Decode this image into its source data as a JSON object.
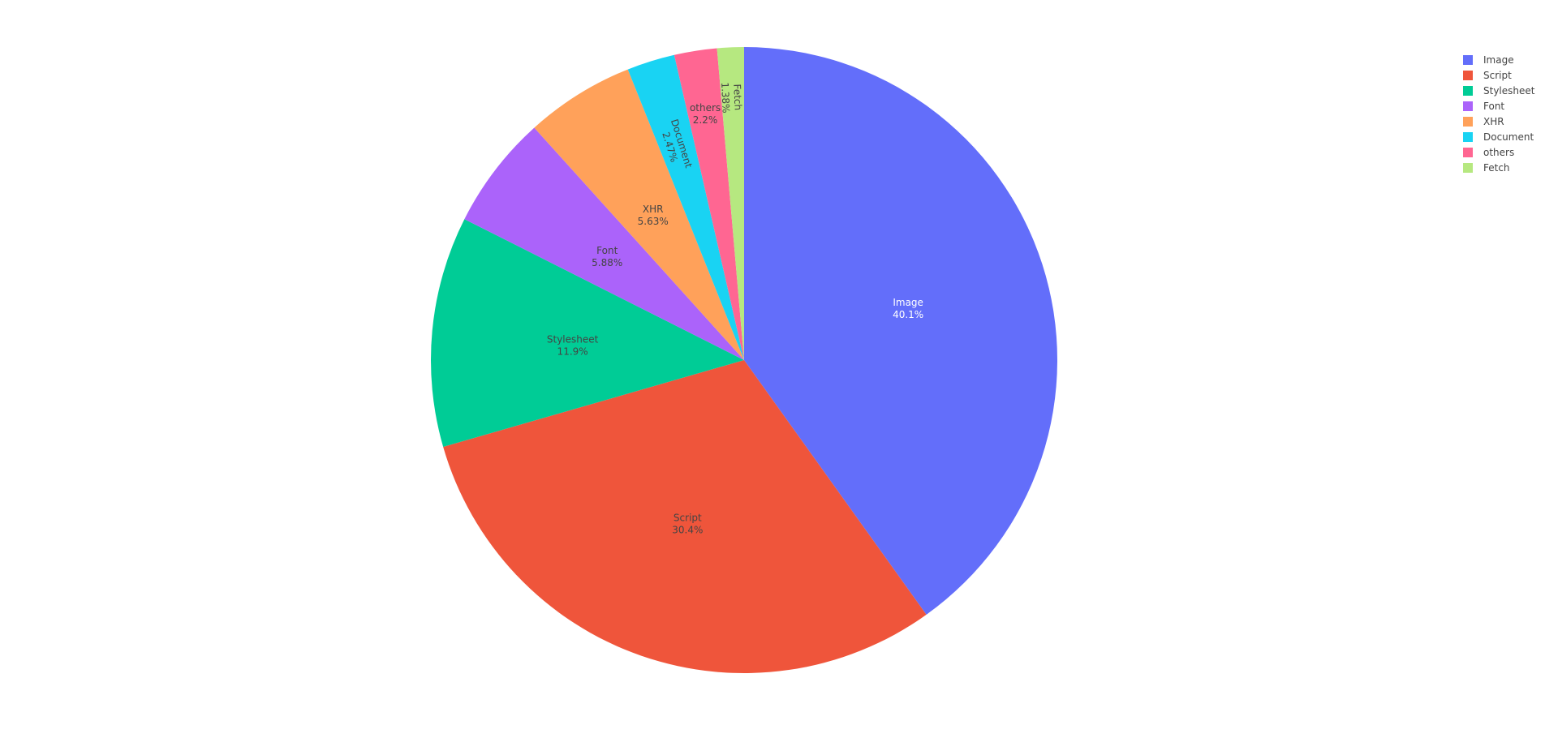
{
  "chart_data": {
    "type": "pie",
    "title": "",
    "direction": "clockwise",
    "sort": "descending",
    "legend_placement": "top-right",
    "slices": [
      {
        "label": "Image",
        "value": 40.1,
        "text": "40.1%",
        "color": "#636efa",
        "text_color": "#ffffff"
      },
      {
        "label": "Script",
        "value": 30.4,
        "text": "30.4%",
        "color": "#ef553b",
        "text_color": "#444444"
      },
      {
        "label": "Stylesheet",
        "value": 11.9,
        "text": "11.9%",
        "color": "#00cc96",
        "text_color": "#444444"
      },
      {
        "label": "Font",
        "value": 5.88,
        "text": "5.88%",
        "color": "#ab63fa",
        "text_color": "#444444"
      },
      {
        "label": "XHR",
        "value": 5.63,
        "text": "5.63%",
        "color": "#ffa15a",
        "text_color": "#444444"
      },
      {
        "label": "Document",
        "value": 2.47,
        "text": "2.47%",
        "color": "#19d3f3",
        "text_color": "#444444"
      },
      {
        "label": "others",
        "value": 2.2,
        "text": "2.2%",
        "color": "#ff6692",
        "text_color": "#444444"
      },
      {
        "label": "Fetch",
        "value": 1.38,
        "text": "1.38%",
        "color": "#b6e880",
        "text_color": "#444444"
      }
    ]
  }
}
